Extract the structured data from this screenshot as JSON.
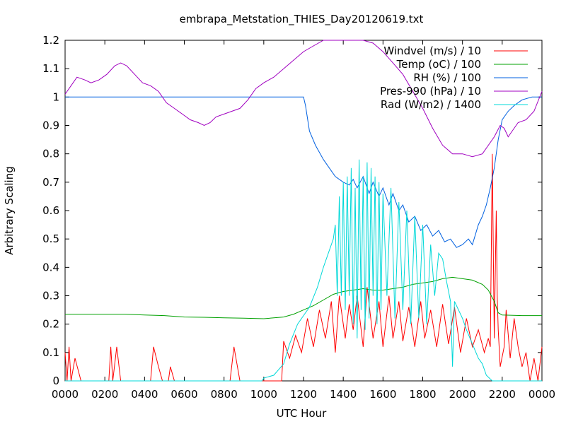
{
  "chart_data": {
    "type": "line",
    "title": "embrapa_Metstation_THIES_Day20120619.txt",
    "xlabel": "UTC Hour",
    "ylabel": "Arbitrary Scaling",
    "xlim": [
      0,
      24
    ],
    "ylim": [
      0,
      1.2
    ],
    "x_ticks": [
      {
        "value": 0,
        "label": "0000"
      },
      {
        "value": 2,
        "label": "0200"
      },
      {
        "value": 4,
        "label": "0400"
      },
      {
        "value": 6,
        "label": "0600"
      },
      {
        "value": 8,
        "label": "0800"
      },
      {
        "value": 10,
        "label": "1000"
      },
      {
        "value": 12,
        "label": "1200"
      },
      {
        "value": 14,
        "label": "1400"
      },
      {
        "value": 16,
        "label": "1600"
      },
      {
        "value": 18,
        "label": "1800"
      },
      {
        "value": 20,
        "label": "2000"
      },
      {
        "value": 22,
        "label": "2200"
      },
      {
        "value": 24,
        "label": "0000"
      }
    ],
    "y_ticks": [
      {
        "value": 0,
        "label": "0"
      },
      {
        "value": 0.1,
        "label": "0.1"
      },
      {
        "value": 0.2,
        "label": "0.2"
      },
      {
        "value": 0.3,
        "label": "0.3"
      },
      {
        "value": 0.4,
        "label": "0.4"
      },
      {
        "value": 0.5,
        "label": "0.5"
      },
      {
        "value": 0.6,
        "label": "0.6"
      },
      {
        "value": 0.7,
        "label": "0.7"
      },
      {
        "value": 0.8,
        "label": "0.8"
      },
      {
        "value": 0.9,
        "label": "0.9"
      },
      {
        "value": 1,
        "label": "1"
      },
      {
        "value": 1.1,
        "label": "1.1"
      },
      {
        "value": 1.2,
        "label": "1.2"
      }
    ],
    "grid": false,
    "legend_position": "top-right",
    "series": [
      {
        "name": "Windvel (m/s) / 10",
        "color": "#ff0000",
        "points": [
          [
            0,
            0.1
          ],
          [
            0.1,
            0
          ],
          [
            0.2,
            0.12
          ],
          [
            0.3,
            0
          ],
          [
            0.5,
            0.08
          ],
          [
            0.8,
            0
          ],
          [
            2.2,
            0
          ],
          [
            2.3,
            0.12
          ],
          [
            2.4,
            0
          ],
          [
            2.6,
            0.12
          ],
          [
            2.8,
            0
          ],
          [
            4.3,
            0
          ],
          [
            4.45,
            0.12
          ],
          [
            4.7,
            0.05
          ],
          [
            4.9,
            0
          ],
          [
            5.2,
            0
          ],
          [
            5.3,
            0.05
          ],
          [
            5.5,
            0
          ],
          [
            8.3,
            0
          ],
          [
            8.5,
            0.12
          ],
          [
            8.8,
            0
          ],
          [
            10.9,
            0
          ],
          [
            11,
            0.14
          ],
          [
            11.3,
            0.08
          ],
          [
            11.6,
            0.16
          ],
          [
            11.9,
            0.1
          ],
          [
            12.2,
            0.22
          ],
          [
            12.5,
            0.12
          ],
          [
            12.8,
            0.25
          ],
          [
            13.1,
            0.15
          ],
          [
            13.4,
            0.28
          ],
          [
            13.6,
            0.1
          ],
          [
            13.8,
            0.3
          ],
          [
            14.1,
            0.15
          ],
          [
            14.3,
            0.27
          ],
          [
            14.5,
            0.18
          ],
          [
            14.7,
            0.3
          ],
          [
            15,
            0.12
          ],
          [
            15.2,
            0.33
          ],
          [
            15.5,
            0.15
          ],
          [
            15.8,
            0.28
          ],
          [
            16,
            0.12
          ],
          [
            16.3,
            0.3
          ],
          [
            16.5,
            0.15
          ],
          [
            16.8,
            0.28
          ],
          [
            17,
            0.14
          ],
          [
            17.3,
            0.26
          ],
          [
            17.6,
            0.12
          ],
          [
            17.9,
            0.28
          ],
          [
            18.1,
            0.15
          ],
          [
            18.4,
            0.25
          ],
          [
            18.7,
            0.12
          ],
          [
            19,
            0.27
          ],
          [
            19.3,
            0.13
          ],
          [
            19.6,
            0.26
          ],
          [
            19.9,
            0.1
          ],
          [
            20.2,
            0.22
          ],
          [
            20.5,
            0.12
          ],
          [
            20.8,
            0.18
          ],
          [
            21.1,
            0.1
          ],
          [
            21.3,
            0.15
          ],
          [
            21.4,
            0.12
          ],
          [
            21.5,
            0.8
          ],
          [
            21.6,
            0.15
          ],
          [
            21.7,
            0.6
          ],
          [
            21.75,
            0.3
          ],
          [
            21.8,
            0.18
          ],
          [
            21.9,
            0.05
          ],
          [
            22.1,
            0.12
          ],
          [
            22.2,
            0.25
          ],
          [
            22.4,
            0.08
          ],
          [
            22.6,
            0.22
          ],
          [
            22.8,
            0.12
          ],
          [
            23,
            0.05
          ],
          [
            23.2,
            0.1
          ],
          [
            23.4,
            0
          ],
          [
            23.6,
            0.08
          ],
          [
            23.8,
            0
          ],
          [
            24,
            0.12
          ]
        ]
      },
      {
        "name": "Temp (oC) / 100",
        "color": "#00a000",
        "points": [
          [
            0,
            0.235
          ],
          [
            1,
            0.235
          ],
          [
            2,
            0.235
          ],
          [
            3,
            0.235
          ],
          [
            4,
            0.232
          ],
          [
            5,
            0.23
          ],
          [
            6,
            0.225
          ],
          [
            7,
            0.224
          ],
          [
            8,
            0.222
          ],
          [
            9,
            0.221
          ],
          [
            10,
            0.219
          ],
          [
            11,
            0.225
          ],
          [
            11.5,
            0.235
          ],
          [
            12,
            0.25
          ],
          [
            12.5,
            0.265
          ],
          [
            13,
            0.285
          ],
          [
            13.5,
            0.305
          ],
          [
            14,
            0.315
          ],
          [
            14.5,
            0.32
          ],
          [
            15,
            0.325
          ],
          [
            15.5,
            0.32
          ],
          [
            16,
            0.32
          ],
          [
            16.5,
            0.325
          ],
          [
            17,
            0.33
          ],
          [
            17.5,
            0.34
          ],
          [
            18,
            0.345
          ],
          [
            18.5,
            0.35
          ],
          [
            19,
            0.36
          ],
          [
            19.5,
            0.365
          ],
          [
            20,
            0.36
          ],
          [
            20.5,
            0.355
          ],
          [
            21,
            0.34
          ],
          [
            21.3,
            0.32
          ],
          [
            21.6,
            0.28
          ],
          [
            21.8,
            0.24
          ],
          [
            22,
            0.232
          ],
          [
            23,
            0.23
          ],
          [
            24,
            0.23
          ]
        ]
      },
      {
        "name": "RH (%) / 100",
        "color": "#0060e0",
        "points": [
          [
            0,
            1
          ],
          [
            4,
            1
          ],
          [
            8,
            1
          ],
          [
            12,
            1
          ],
          [
            12.1,
            0.97
          ],
          [
            12.3,
            0.88
          ],
          [
            12.6,
            0.83
          ],
          [
            13,
            0.78
          ],
          [
            13.3,
            0.75
          ],
          [
            13.6,
            0.72
          ],
          [
            14,
            0.7
          ],
          [
            14.3,
            0.69
          ],
          [
            14.5,
            0.71
          ],
          [
            14.7,
            0.68
          ],
          [
            15,
            0.72
          ],
          [
            15.3,
            0.66
          ],
          [
            15.5,
            0.7
          ],
          [
            15.8,
            0.65
          ],
          [
            16,
            0.68
          ],
          [
            16.3,
            0.62
          ],
          [
            16.5,
            0.66
          ],
          [
            16.8,
            0.6
          ],
          [
            17,
            0.62
          ],
          [
            17.3,
            0.56
          ],
          [
            17.6,
            0.58
          ],
          [
            17.9,
            0.53
          ],
          [
            18.2,
            0.55
          ],
          [
            18.5,
            0.51
          ],
          [
            18.8,
            0.53
          ],
          [
            19.1,
            0.49
          ],
          [
            19.4,
            0.5
          ],
          [
            19.7,
            0.47
          ],
          [
            20,
            0.48
          ],
          [
            20.3,
            0.5
          ],
          [
            20.5,
            0.48
          ],
          [
            20.8,
            0.55
          ],
          [
            21,
            0.58
          ],
          [
            21.2,
            0.62
          ],
          [
            21.4,
            0.68
          ],
          [
            21.6,
            0.75
          ],
          [
            21.8,
            0.85
          ],
          [
            22,
            0.92
          ],
          [
            22.3,
            0.95
          ],
          [
            22.6,
            0.97
          ],
          [
            23,
            0.99
          ],
          [
            23.5,
            1
          ],
          [
            24,
            1
          ]
        ]
      },
      {
        "name": "Pres-990 (hPa) / 10",
        "color": "#a000c0",
        "points": [
          [
            0,
            1.01
          ],
          [
            0.3,
            1.04
          ],
          [
            0.6,
            1.07
          ],
          [
            1,
            1.06
          ],
          [
            1.3,
            1.05
          ],
          [
            1.7,
            1.06
          ],
          [
            2.1,
            1.08
          ],
          [
            2.5,
            1.11
          ],
          [
            2.8,
            1.12
          ],
          [
            3.1,
            1.11
          ],
          [
            3.5,
            1.08
          ],
          [
            3.9,
            1.05
          ],
          [
            4.3,
            1.04
          ],
          [
            4.7,
            1.02
          ],
          [
            5.1,
            0.98
          ],
          [
            5.5,
            0.96
          ],
          [
            5.9,
            0.94
          ],
          [
            6.3,
            0.92
          ],
          [
            6.7,
            0.91
          ],
          [
            7,
            0.9
          ],
          [
            7.3,
            0.91
          ],
          [
            7.6,
            0.93
          ],
          [
            8,
            0.94
          ],
          [
            8.4,
            0.95
          ],
          [
            8.8,
            0.96
          ],
          [
            9.2,
            0.99
          ],
          [
            9.6,
            1.03
          ],
          [
            10,
            1.05
          ],
          [
            10.5,
            1.07
          ],
          [
            11,
            1.1
          ],
          [
            11.5,
            1.13
          ],
          [
            12,
            1.16
          ],
          [
            12.5,
            1.18
          ],
          [
            13,
            1.2
          ],
          [
            13.5,
            1.21
          ],
          [
            14,
            1.21
          ],
          [
            14.5,
            1.21
          ],
          [
            15,
            1.2
          ],
          [
            15.5,
            1.19
          ],
          [
            16,
            1.16
          ],
          [
            16.5,
            1.12
          ],
          [
            17,
            1.08
          ],
          [
            17.5,
            1.02
          ],
          [
            18,
            0.96
          ],
          [
            18.5,
            0.89
          ],
          [
            19,
            0.83
          ],
          [
            19.5,
            0.8
          ],
          [
            20,
            0.8
          ],
          [
            20.5,
            0.79
          ],
          [
            21,
            0.8
          ],
          [
            21.3,
            0.83
          ],
          [
            21.6,
            0.86
          ],
          [
            21.9,
            0.9
          ],
          [
            22.1,
            0.89
          ],
          [
            22.3,
            0.86
          ],
          [
            22.5,
            0.88
          ],
          [
            22.8,
            0.91
          ],
          [
            23.2,
            0.92
          ],
          [
            23.6,
            0.95
          ],
          [
            24,
            1.02
          ]
        ]
      },
      {
        "name": "Rad (W/m2) / 1400",
        "color": "#00d8d8",
        "points": [
          [
            0,
            0
          ],
          [
            6,
            0
          ],
          [
            9.9,
            0
          ],
          [
            10,
            0.01
          ],
          [
            10.5,
            0.02
          ],
          [
            11,
            0.06
          ],
          [
            11.3,
            0.13
          ],
          [
            11.7,
            0.2
          ],
          [
            12,
            0.23
          ],
          [
            12.3,
            0.26
          ],
          [
            12.7,
            0.33
          ],
          [
            13,
            0.4
          ],
          [
            13.3,
            0.46
          ],
          [
            13.5,
            0.5
          ],
          [
            13.6,
            0.55
          ],
          [
            13.7,
            0.3
          ],
          [
            13.8,
            0.65
          ],
          [
            13.9,
            0.3
          ],
          [
            14,
            0.7
          ],
          [
            14.1,
            0.25
          ],
          [
            14.2,
            0.72
          ],
          [
            14.3,
            0.3
          ],
          [
            14.4,
            0.75
          ],
          [
            14.5,
            0.2
          ],
          [
            14.6,
            0.68
          ],
          [
            14.7,
            0.15
          ],
          [
            14.8,
            0.78
          ],
          [
            14.9,
            0.25
          ],
          [
            15,
            0.72
          ],
          [
            15.1,
            0.18
          ],
          [
            15.2,
            0.77
          ],
          [
            15.3,
            0.22
          ],
          [
            15.4,
            0.75
          ],
          [
            15.5,
            0.3
          ],
          [
            15.6,
            0.72
          ],
          [
            15.7,
            0.2
          ],
          [
            15.8,
            0.7
          ],
          [
            15.9,
            0.25
          ],
          [
            16,
            0.66
          ],
          [
            16.2,
            0.3
          ],
          [
            16.4,
            0.68
          ],
          [
            16.6,
            0.22
          ],
          [
            16.8,
            0.63
          ],
          [
            17,
            0.25
          ],
          [
            17.2,
            0.6
          ],
          [
            17.4,
            0.2
          ],
          [
            17.6,
            0.58
          ],
          [
            17.8,
            0.22
          ],
          [
            18,
            0.55
          ],
          [
            18.2,
            0.2
          ],
          [
            18.4,
            0.48
          ],
          [
            18.6,
            0.3
          ],
          [
            18.8,
            0.45
          ],
          [
            19,
            0.43
          ],
          [
            19.2,
            0.35
          ],
          [
            19.4,
            0.28
          ],
          [
            19.5,
            0.05
          ],
          [
            19.6,
            0.28
          ],
          [
            19.8,
            0.25
          ],
          [
            20,
            0.22
          ],
          [
            20.2,
            0.18
          ],
          [
            20.5,
            0.13
          ],
          [
            20.8,
            0.08
          ],
          [
            21,
            0.06
          ],
          [
            21.2,
            0.02
          ],
          [
            21.5,
            0
          ],
          [
            24,
            0
          ]
        ]
      }
    ]
  }
}
